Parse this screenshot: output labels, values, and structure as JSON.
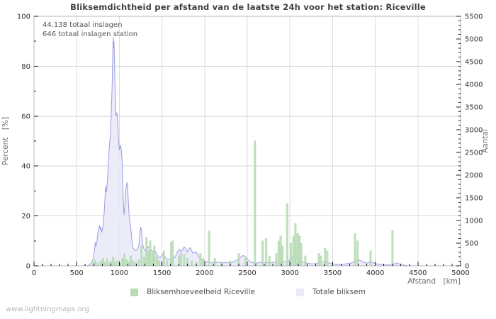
{
  "watermark": "www.lightningmaps.org",
  "chart_data": {
    "type": "mixed",
    "title": "Bliksemdichtheid per afstand van de laatste 24h voor het station: Riceville",
    "annotations": [
      "44.138 totaal inslagen",
      "646 totaal inslagen station"
    ],
    "x_axis": {
      "label": "Afstand  [km]",
      "min": 0,
      "max": 5000,
      "major": 500,
      "minor": 100
    },
    "left_axis": {
      "label": "Percent  [%]",
      "min": 0,
      "max": 100,
      "major": 20,
      "minor": 10
    },
    "right_axis": {
      "label": "Aantal",
      "min": 0,
      "max": 5500,
      "major": 500,
      "minor": 100
    },
    "grid": true,
    "legend_position": "bottom",
    "series": [
      {
        "name": "Bliksemhoeveelheid Riceville",
        "type": "bar",
        "axis": "left",
        "color": "#b6dcb2",
        "points": [
          [
            696,
            1.4
          ],
          [
            718,
            2.4
          ],
          [
            748,
            1.2
          ],
          [
            780,
            2.1
          ],
          [
            808,
            3.2
          ],
          [
            832,
            1.5
          ],
          [
            858,
            3.0
          ],
          [
            880,
            1.3
          ],
          [
            902,
            2.1
          ],
          [
            928,
            3.6
          ],
          [
            952,
            1.6
          ],
          [
            980,
            2.3
          ],
          [
            1008,
            1.5
          ],
          [
            1036,
            3.0
          ],
          [
            1060,
            5.0
          ],
          [
            1088,
            2.6
          ],
          [
            1112,
            1.6
          ],
          [
            1134,
            4.1
          ],
          [
            1160,
            2.1
          ],
          [
            1192,
            1.5
          ],
          [
            1228,
            2.6
          ],
          [
            1260,
            8.1
          ],
          [
            1292,
            3.6
          ],
          [
            1318,
            11.6
          ],
          [
            1342,
            6.2
          ],
          [
            1362,
            10.2
          ],
          [
            1390,
            5.2
          ],
          [
            1412,
            8.1
          ],
          [
            1440,
            3.6
          ],
          [
            1468,
            2.1
          ],
          [
            1500,
            1.6
          ],
          [
            1522,
            6.1
          ],
          [
            1560,
            2.1
          ],
          [
            1608,
            9.6
          ],
          [
            1624,
            10.1
          ],
          [
            1700,
            4.1
          ],
          [
            1722,
            5.1
          ],
          [
            1760,
            4.6
          ],
          [
            1800,
            3.1
          ],
          [
            1850,
            2.1
          ],
          [
            1902,
            1.6
          ],
          [
            1950,
            5.1
          ],
          [
            1980,
            3.1
          ],
          [
            2052,
            14.1
          ],
          [
            2120,
            3.1
          ],
          [
            2200,
            1.6
          ],
          [
            2300,
            2.1
          ],
          [
            2400,
            5.1
          ],
          [
            2478,
            3.1
          ],
          [
            2590,
            50.2
          ],
          [
            2680,
            10.1
          ],
          [
            2722,
            11.1
          ],
          [
            2760,
            4.1
          ],
          [
            2840,
            5.1
          ],
          [
            2868,
            10.1
          ],
          [
            2890,
            12.1
          ],
          [
            2912,
            8.1
          ],
          [
            2968,
            25.1
          ],
          [
            3010,
            9.1
          ],
          [
            3040,
            12.1
          ],
          [
            3064,
            17.1
          ],
          [
            3090,
            13.1
          ],
          [
            3112,
            12.1
          ],
          [
            3132,
            9.1
          ],
          [
            3180,
            4.1
          ],
          [
            3340,
            5.1
          ],
          [
            3364,
            4.1
          ],
          [
            3410,
            7.1
          ],
          [
            3438,
            6.1
          ],
          [
            3762,
            13.1
          ],
          [
            3792,
            10.1
          ],
          [
            3945,
            6.1
          ],
          [
            4202,
            14.2
          ]
        ]
      },
      {
        "name": "Totale bliksem",
        "type": "area",
        "axis": "right",
        "fill": "#e9e9f8",
        "stroke": "#9b9ce0",
        "points": [
          [
            0,
            0
          ],
          [
            620,
            0
          ],
          [
            650,
            20
          ],
          [
            670,
            60
          ],
          [
            690,
            140
          ],
          [
            700,
            230
          ],
          [
            710,
            370
          ],
          [
            718,
            520
          ],
          [
            726,
            430
          ],
          [
            734,
            480
          ],
          [
            742,
            620
          ],
          [
            750,
            740
          ],
          [
            760,
            830
          ],
          [
            768,
            890
          ],
          [
            776,
            800
          ],
          [
            784,
            860
          ],
          [
            792,
            740
          ],
          [
            800,
            780
          ],
          [
            810,
            900
          ],
          [
            820,
            1100
          ],
          [
            830,
            1400
          ],
          [
            838,
            1760
          ],
          [
            846,
            1620
          ],
          [
            854,
            1700
          ],
          [
            862,
            1950
          ],
          [
            870,
            2150
          ],
          [
            878,
            2500
          ],
          [
            886,
            2700
          ],
          [
            894,
            2850
          ],
          [
            900,
            3100
          ],
          [
            908,
            3500
          ],
          [
            915,
            3950
          ],
          [
            922,
            4550
          ],
          [
            928,
            5030
          ],
          [
            933,
            4800
          ],
          [
            938,
            4950
          ],
          [
            944,
            4450
          ],
          [
            950,
            3900
          ],
          [
            956,
            3400
          ],
          [
            963,
            3300
          ],
          [
            970,
            3380
          ],
          [
            977,
            3300
          ],
          [
            984,
            3050
          ],
          [
            991,
            2750
          ],
          [
            1000,
            2550
          ],
          [
            1008,
            2620
          ],
          [
            1016,
            2650
          ],
          [
            1024,
            2550
          ],
          [
            1032,
            2300
          ],
          [
            1040,
            1850
          ],
          [
            1048,
            1350
          ],
          [
            1056,
            1120
          ],
          [
            1064,
            1300
          ],
          [
            1072,
            1550
          ],
          [
            1080,
            1750
          ],
          [
            1090,
            1840
          ],
          [
            1098,
            1700
          ],
          [
            1106,
            1400
          ],
          [
            1114,
            1150
          ],
          [
            1122,
            980
          ],
          [
            1130,
            900
          ],
          [
            1140,
            720
          ],
          [
            1150,
            500
          ],
          [
            1160,
            400
          ],
          [
            1175,
            355
          ],
          [
            1190,
            340
          ],
          [
            1210,
            360
          ],
          [
            1228,
            430
          ],
          [
            1240,
            700
          ],
          [
            1250,
            860
          ],
          [
            1258,
            800
          ],
          [
            1268,
            590
          ],
          [
            1278,
            440
          ],
          [
            1290,
            370
          ],
          [
            1305,
            330
          ],
          [
            1320,
            370
          ],
          [
            1338,
            420
          ],
          [
            1355,
            390
          ],
          [
            1372,
            350
          ],
          [
            1390,
            310
          ],
          [
            1408,
            340
          ],
          [
            1425,
            310
          ],
          [
            1443,
            240
          ],
          [
            1460,
            190
          ],
          [
            1478,
            185
          ],
          [
            1495,
            215
          ],
          [
            1512,
            265
          ],
          [
            1530,
            215
          ],
          [
            1548,
            160
          ],
          [
            1566,
            135
          ],
          [
            1585,
            140
          ],
          [
            1605,
            170
          ],
          [
            1625,
            160
          ],
          [
            1645,
            175
          ],
          [
            1665,
            240
          ],
          [
            1685,
            320
          ],
          [
            1705,
            365
          ],
          [
            1722,
            310
          ],
          [
            1740,
            345
          ],
          [
            1758,
            415
          ],
          [
            1775,
            395
          ],
          [
            1792,
            310
          ],
          [
            1810,
            350
          ],
          [
            1828,
            400
          ],
          [
            1845,
            350
          ],
          [
            1862,
            280
          ],
          [
            1880,
            290
          ],
          [
            1898,
            310
          ],
          [
            1915,
            250
          ],
          [
            1932,
            190
          ],
          [
            1950,
            160
          ],
          [
            1970,
            130
          ],
          [
            2000,
            105
          ],
          [
            2040,
            90
          ],
          [
            2080,
            75
          ],
          [
            2120,
            70
          ],
          [
            2160,
            75
          ],
          [
            2200,
            80
          ],
          [
            2240,
            70
          ],
          [
            2280,
            65
          ],
          [
            2320,
            75
          ],
          [
            2360,
            105
          ],
          [
            2400,
            150
          ],
          [
            2430,
            205
          ],
          [
            2455,
            230
          ],
          [
            2480,
            200
          ],
          [
            2505,
            145
          ],
          [
            2530,
            95
          ],
          [
            2560,
            70
          ],
          [
            2600,
            60
          ],
          [
            2640,
            70
          ],
          [
            2680,
            90
          ],
          [
            2720,
            75
          ],
          [
            2760,
            65
          ],
          [
            2800,
            70
          ],
          [
            2840,
            90
          ],
          [
            2880,
            105
          ],
          [
            2920,
            90
          ],
          [
            2960,
            95
          ],
          [
            3000,
            125
          ],
          [
            3030,
            200
          ],
          [
            3055,
            250
          ],
          [
            3080,
            215
          ],
          [
            3110,
            130
          ],
          [
            3150,
            85
          ],
          [
            3200,
            60
          ],
          [
            3250,
            45
          ],
          [
            3300,
            45
          ],
          [
            3350,
            65
          ],
          [
            3395,
            90
          ],
          [
            3430,
            80
          ],
          [
            3470,
            55
          ],
          [
            3510,
            40
          ],
          [
            3560,
            30
          ],
          [
            3610,
            30
          ],
          [
            3660,
            45
          ],
          [
            3710,
            55
          ],
          [
            3755,
            90
          ],
          [
            3795,
            140
          ],
          [
            3825,
            120
          ],
          [
            3855,
            80
          ],
          [
            3900,
            60
          ],
          [
            3945,
            90
          ],
          [
            3975,
            70
          ],
          [
            4010,
            45
          ],
          [
            4060,
            30
          ],
          [
            4110,
            20
          ],
          [
            4160,
            20
          ],
          [
            4210,
            30
          ],
          [
            4250,
            60
          ],
          [
            4285,
            40
          ],
          [
            4320,
            20
          ],
          [
            4360,
            8
          ],
          [
            4400,
            0
          ],
          [
            5000,
            0
          ]
        ]
      }
    ]
  }
}
